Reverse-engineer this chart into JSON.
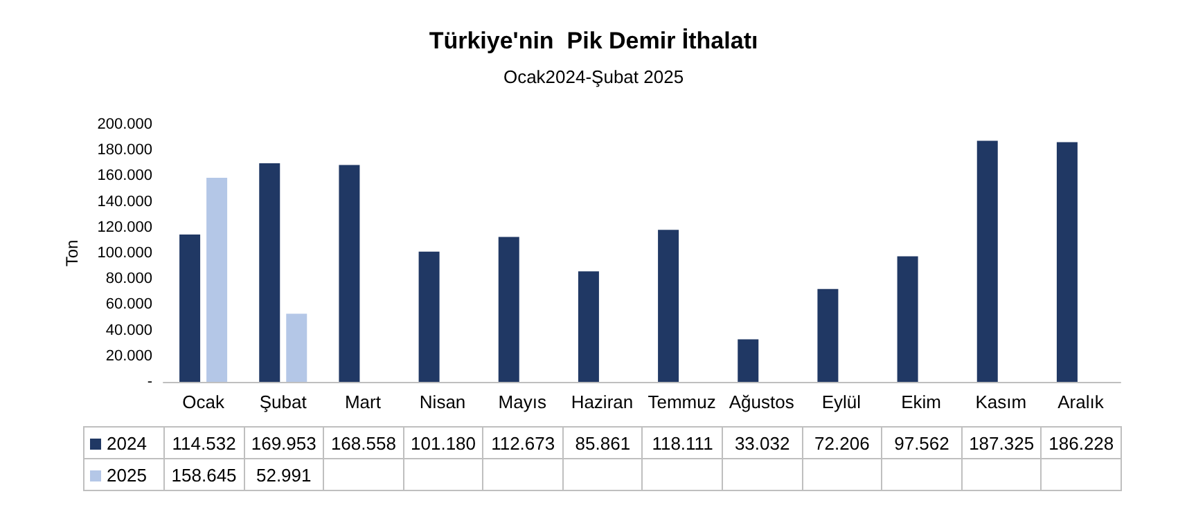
{
  "chart_data": {
    "type": "bar",
    "title": "Türkiye'nin  Pik Demir İthalatı",
    "subtitle": "Ocak2024-Şubat 2025",
    "ylabel": "Ton",
    "categories": [
      "Ocak",
      "Şubat",
      "Mart",
      "Nisan",
      "Mayıs",
      "Haziran",
      "Temmuz",
      "Ağustos",
      "Eylül",
      "Ekim",
      "Kasım",
      "Aralık"
    ],
    "series": [
      {
        "name": "2024",
        "color": "#203864",
        "values": [
          114532,
          169953,
          168558,
          101180,
          112673,
          85861,
          118111,
          33032,
          72206,
          97562,
          187325,
          186228
        ],
        "value_labels": [
          "114.532",
          "169.953",
          "168.558",
          "101.180",
          "112.673",
          "85.861",
          "118.111",
          "33.032",
          "72.206",
          "97.562",
          "187.325",
          "186.228"
        ]
      },
      {
        "name": "2025",
        "color": "#b4c7e7",
        "values": [
          158645,
          52991,
          null,
          null,
          null,
          null,
          null,
          null,
          null,
          null,
          null,
          null
        ],
        "value_labels": [
          "158.645",
          "52.991",
          null,
          null,
          null,
          null,
          null,
          null,
          null,
          null,
          null,
          null
        ]
      }
    ],
    "ylim": [
      0,
      200000
    ],
    "yticks": [
      {
        "value": 0,
        "label": "-"
      },
      {
        "value": 20000,
        "label": "20.000"
      },
      {
        "value": 40000,
        "label": "40.000"
      },
      {
        "value": 60000,
        "label": "60.000"
      },
      {
        "value": 80000,
        "label": "80.000"
      },
      {
        "value": 100000,
        "label": "100.000"
      },
      {
        "value": 120000,
        "label": "120.000"
      },
      {
        "value": 140000,
        "label": "140.000"
      },
      {
        "value": 160000,
        "label": "160.000"
      },
      {
        "value": 180000,
        "label": "180.000"
      },
      {
        "value": 200000,
        "label": "200.000"
      }
    ],
    "legend": "bottom"
  }
}
